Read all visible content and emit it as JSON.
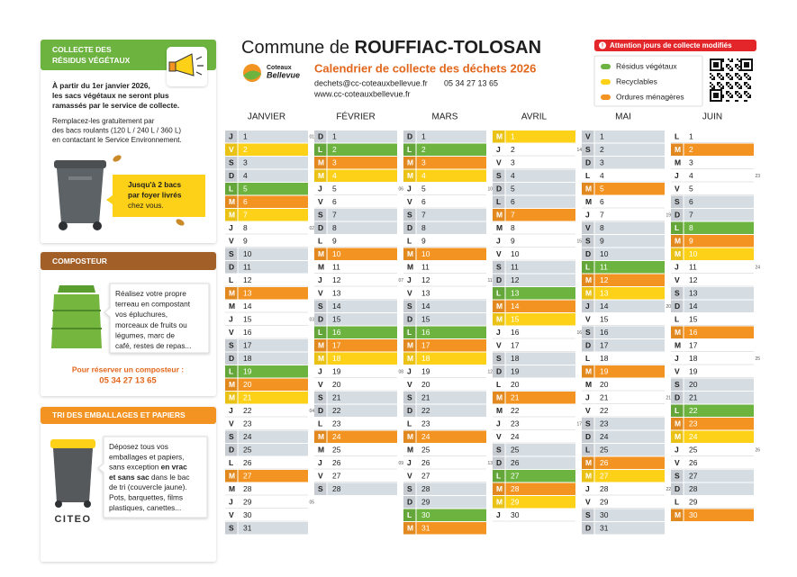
{
  "header": {
    "commune_prefix": "Commune de ",
    "commune": "ROUFFIAC-TOLOSAN",
    "logo": [
      "Coteaux",
      "Bellevue"
    ],
    "subtitle": "Calendrier de collecte des déchets 2026",
    "email": "dechets@cc-coteauxbellevue.fr",
    "phone": "05 34 27 13 65",
    "website": "www.cc-coteauxbellevue.fr"
  },
  "alert": "Attention jours de collecte modifiés",
  "legend": [
    {
      "key": "g",
      "label": "Résidus végétaux",
      "color": "#6cb33f"
    },
    {
      "key": "y",
      "label": "Recyclables",
      "color": "#fcd118"
    },
    {
      "key": "o",
      "label": "Ordures ménagères",
      "color": "#f39322"
    }
  ],
  "off_color": "#d5dce2",
  "sidebar": {
    "vegetal": {
      "title": [
        [
          "COLLECTE DES"
        ],
        [
          "RÉSIDUS VÉGÉTAUX"
        ]
      ],
      "notice": [
        [
          "À partir du 1er janvier 2026,"
        ],
        [
          "les sacs végétaux ne seront plus"
        ],
        [
          "ramassés par le service de collecte."
        ]
      ],
      "text": [
        [
          "Remplacez-les gratuitement par"
        ],
        [
          "des bacs roulants (120 L / 240 L / 360 L)"
        ],
        [
          "en contactant le Service Environnement."
        ]
      ],
      "callout": [
        [
          {
            "b": "Jusqu'à 2 bacs"
          }
        ],
        [
          {
            "b": "par foyer livrés"
          }
        ],
        [
          "chez vous."
        ]
      ]
    },
    "compost": {
      "title": [
        [
          "COMPOSTEUR"
        ]
      ],
      "text": [
        [
          "Réalisez votre propre"
        ],
        [
          "terreau en compostant"
        ],
        [
          "vos épluchures,"
        ],
        [
          "morceaux de fruits ou"
        ],
        [
          "légumes, marc de"
        ],
        [
          "café, restes de repas..."
        ]
      ],
      "booking": "Pour réserver un composteur :",
      "phone": "05 34 27 13 65"
    },
    "sorting": {
      "title": [
        [
          "TRI DES EMBALLAGES ET PAPIERS"
        ]
      ],
      "text": [
        [
          "Déposez tous vos"
        ],
        [
          "emballages et papiers,"
        ],
        [
          "sans exception ",
          {
            "b": "en vrac"
          }
        ],
        [
          {
            "b": "et sans sac"
          },
          " dans le bac"
        ],
        [
          "de tri (couvercle jaune)."
        ],
        [
          "Pots, barquettes, films"
        ],
        [
          "plastiques, canettes..."
        ]
      ],
      "brand": "CITEO"
    }
  },
  "calendar": [
    {
      "month": "JANVIER",
      "days": [
        [
          "J",
          1,
          "x",
          "01"
        ],
        [
          "V",
          2,
          "y"
        ],
        [
          "S",
          3,
          "x"
        ],
        [
          "D",
          4,
          "x"
        ],
        [
          "L",
          5,
          "g"
        ],
        [
          "M",
          6,
          "o"
        ],
        [
          "M",
          7,
          "y"
        ],
        [
          "J",
          8,
          null,
          "02"
        ],
        [
          "V",
          9
        ],
        [
          "S",
          10,
          "x"
        ],
        [
          "D",
          11,
          "x"
        ],
        [
          "L",
          12
        ],
        [
          "M",
          13,
          "o"
        ],
        [
          "M",
          14
        ],
        [
          "J",
          15,
          null,
          "03"
        ],
        [
          "V",
          16
        ],
        [
          "S",
          17,
          "x"
        ],
        [
          "D",
          18,
          "x"
        ],
        [
          "L",
          19,
          "g"
        ],
        [
          "M",
          20,
          "o"
        ],
        [
          "M",
          21,
          "y"
        ],
        [
          "J",
          22,
          null,
          "04"
        ],
        [
          "V",
          23
        ],
        [
          "S",
          24,
          "x"
        ],
        [
          "D",
          25,
          "x"
        ],
        [
          "L",
          26
        ],
        [
          "M",
          27,
          "o"
        ],
        [
          "M",
          28
        ],
        [
          "J",
          29,
          null,
          "05"
        ],
        [
          "V",
          30
        ],
        [
          "S",
          31,
          "x"
        ]
      ]
    },
    {
      "month": "FÉVRIER",
      "days": [
        [
          "D",
          1,
          "x"
        ],
        [
          "L",
          2,
          "g"
        ],
        [
          "M",
          3,
          "o"
        ],
        [
          "M",
          4,
          "y"
        ],
        [
          "J",
          5,
          null,
          "06"
        ],
        [
          "V",
          6
        ],
        [
          "S",
          7,
          "x"
        ],
        [
          "D",
          8,
          "x"
        ],
        [
          "L",
          9
        ],
        [
          "M",
          10,
          "o"
        ],
        [
          "M",
          11
        ],
        [
          "J",
          12,
          null,
          "07"
        ],
        [
          "V",
          13
        ],
        [
          "S",
          14,
          "x"
        ],
        [
          "D",
          15,
          "x"
        ],
        [
          "L",
          16,
          "g"
        ],
        [
          "M",
          17,
          "o"
        ],
        [
          "M",
          18,
          "y"
        ],
        [
          "J",
          19,
          null,
          "08"
        ],
        [
          "V",
          20
        ],
        [
          "S",
          21,
          "x"
        ],
        [
          "D",
          22,
          "x"
        ],
        [
          "L",
          23
        ],
        [
          "M",
          24,
          "o"
        ],
        [
          "M",
          25
        ],
        [
          "J",
          26,
          null,
          "09"
        ],
        [
          "V",
          27
        ],
        [
          "S",
          28,
          "x"
        ]
      ]
    },
    {
      "month": "MARS",
      "days": [
        [
          "D",
          1,
          "x"
        ],
        [
          "L",
          2,
          "g"
        ],
        [
          "M",
          3,
          "o"
        ],
        [
          "M",
          4,
          "y"
        ],
        [
          "J",
          5,
          null,
          "10"
        ],
        [
          "V",
          6
        ],
        [
          "S",
          7,
          "x"
        ],
        [
          "D",
          8,
          "x"
        ],
        [
          "L",
          9
        ],
        [
          "M",
          10,
          "o"
        ],
        [
          "M",
          11
        ],
        [
          "J",
          12,
          null,
          "11"
        ],
        [
          "V",
          13
        ],
        [
          "S",
          14,
          "x"
        ],
        [
          "D",
          15,
          "x"
        ],
        [
          "L",
          16,
          "g"
        ],
        [
          "M",
          17,
          "o"
        ],
        [
          "M",
          18,
          "y"
        ],
        [
          "J",
          19,
          null,
          "12"
        ],
        [
          "V",
          20
        ],
        [
          "S",
          21,
          "x"
        ],
        [
          "D",
          22,
          "x"
        ],
        [
          "L",
          23
        ],
        [
          "M",
          24,
          "o"
        ],
        [
          "M",
          25
        ],
        [
          "J",
          26,
          null,
          "13"
        ],
        [
          "V",
          27
        ],
        [
          "S",
          28,
          "x"
        ],
        [
          "D",
          29,
          "x"
        ],
        [
          "L",
          30,
          "g"
        ],
        [
          "M",
          31,
          "o"
        ]
      ]
    },
    {
      "month": "AVRIL",
      "days": [
        [
          "M",
          1,
          "y"
        ],
        [
          "J",
          2,
          null,
          "14"
        ],
        [
          "V",
          3
        ],
        [
          "S",
          4,
          "x"
        ],
        [
          "D",
          5,
          "x"
        ],
        [
          "L",
          6,
          "x"
        ],
        [
          "M",
          7,
          "o"
        ],
        [
          "M",
          8
        ],
        [
          "J",
          9,
          null,
          "15"
        ],
        [
          "V",
          10
        ],
        [
          "S",
          11,
          "x"
        ],
        [
          "D",
          12,
          "x"
        ],
        [
          "L",
          13,
          "g"
        ],
        [
          "M",
          14,
          "o"
        ],
        [
          "M",
          15,
          "y"
        ],
        [
          "J",
          16,
          null,
          "16"
        ],
        [
          "V",
          17
        ],
        [
          "S",
          18,
          "x"
        ],
        [
          "D",
          19,
          "x"
        ],
        [
          "L",
          20
        ],
        [
          "M",
          21,
          "o"
        ],
        [
          "M",
          22
        ],
        [
          "J",
          23,
          null,
          "17"
        ],
        [
          "V",
          24
        ],
        [
          "S",
          25,
          "x"
        ],
        [
          "D",
          26,
          "x"
        ],
        [
          "L",
          27,
          "g"
        ],
        [
          "M",
          28,
          "o"
        ],
        [
          "M",
          29,
          "y"
        ],
        [
          "J",
          30
        ]
      ]
    },
    {
      "month": "MAI",
      "days": [
        [
          "V",
          1,
          "x"
        ],
        [
          "S",
          2,
          "x"
        ],
        [
          "D",
          3,
          "x"
        ],
        [
          "L",
          4
        ],
        [
          "M",
          5,
          "o"
        ],
        [
          "M",
          6
        ],
        [
          "J",
          7,
          null,
          "19"
        ],
        [
          "V",
          8,
          "x"
        ],
        [
          "S",
          9,
          "x"
        ],
        [
          "D",
          10,
          "x"
        ],
        [
          "L",
          11,
          "g"
        ],
        [
          "M",
          12,
          "o"
        ],
        [
          "M",
          13,
          "y"
        ],
        [
          "J",
          14,
          "x",
          "20"
        ],
        [
          "V",
          15
        ],
        [
          "S",
          16,
          "x"
        ],
        [
          "D",
          17,
          "x"
        ],
        [
          "L",
          18
        ],
        [
          "M",
          19,
          "o"
        ],
        [
          "M",
          20
        ],
        [
          "J",
          21,
          null,
          "21"
        ],
        [
          "V",
          22
        ],
        [
          "S",
          23,
          "x"
        ],
        [
          "D",
          24,
          "x"
        ],
        [
          "L",
          25,
          "x"
        ],
        [
          "M",
          26,
          "o"
        ],
        [
          "M",
          27,
          "y"
        ],
        [
          "J",
          28,
          null,
          "22"
        ],
        [
          "V",
          29
        ],
        [
          "S",
          30,
          "x"
        ],
        [
          "D",
          31,
          "x"
        ]
      ]
    },
    {
      "month": "JUIN",
      "days": [
        [
          "L",
          1
        ],
        [
          "M",
          2,
          "o"
        ],
        [
          "M",
          3
        ],
        [
          "J",
          4,
          null,
          "23"
        ],
        [
          "V",
          5
        ],
        [
          "S",
          6,
          "x"
        ],
        [
          "D",
          7,
          "x"
        ],
        [
          "L",
          8,
          "g"
        ],
        [
          "M",
          9,
          "o"
        ],
        [
          "M",
          10,
          "y"
        ],
        [
          "J",
          11,
          null,
          "24"
        ],
        [
          "V",
          12
        ],
        [
          "S",
          13,
          "x"
        ],
        [
          "D",
          14,
          "x"
        ],
        [
          "L",
          15
        ],
        [
          "M",
          16,
          "o"
        ],
        [
          "M",
          17
        ],
        [
          "J",
          18,
          null,
          "25"
        ],
        [
          "V",
          19
        ],
        [
          "S",
          20,
          "x"
        ],
        [
          "D",
          21,
          "x"
        ],
        [
          "L",
          22,
          "g"
        ],
        [
          "M",
          23,
          "o"
        ],
        [
          "M",
          24,
          "y"
        ],
        [
          "J",
          25,
          null,
          "26"
        ],
        [
          "V",
          26
        ],
        [
          "S",
          27,
          "x"
        ],
        [
          "D",
          28,
          "x"
        ],
        [
          "L",
          29
        ],
        [
          "M",
          30,
          "o"
        ]
      ]
    }
  ]
}
